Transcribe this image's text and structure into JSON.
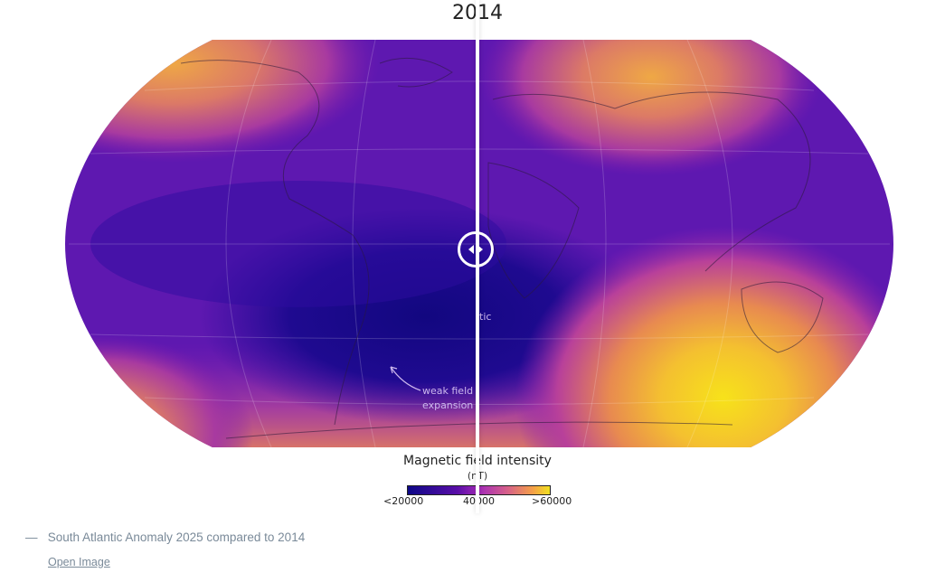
{
  "comparison": {
    "year_label": "2014",
    "slider_position_percent": 50
  },
  "map": {
    "annotations": {
      "anomaly_fragment": "tic",
      "weak_field_line1": "weak field",
      "weak_field_line2": "expansion"
    },
    "legend": {
      "title": "Magnetic field intensity",
      "unit": "(nT)",
      "tick_min": "<20000",
      "tick_mid": "40000",
      "tick_max": ">60000",
      "colors": [
        "#0d0887",
        "#5a0ea8",
        "#a32ab8",
        "#d6608a",
        "#f5a048",
        "#f0e020"
      ]
    }
  },
  "caption": {
    "text": "South Atlantic Anomaly 2025 compared to 2014",
    "dash": "—",
    "open_image_link": "Open Image"
  }
}
